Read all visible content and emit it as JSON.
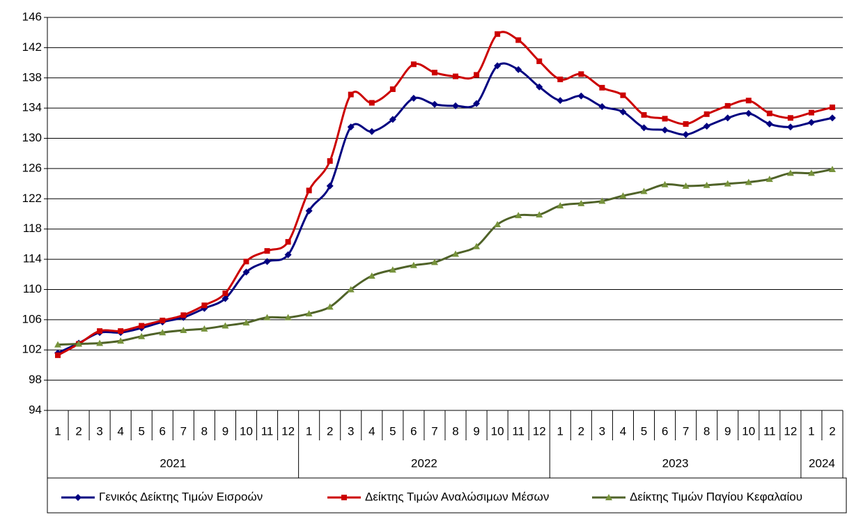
{
  "chart_data": {
    "type": "line",
    "categories": [
      "1",
      "2",
      "3",
      "4",
      "5",
      "6",
      "7",
      "8",
      "9",
      "10",
      "11",
      "12",
      "1",
      "2",
      "3",
      "4",
      "5",
      "6",
      "7",
      "8",
      "9",
      "10",
      "11",
      "12",
      "1",
      "2",
      "3",
      "4",
      "5",
      "6",
      "7",
      "8",
      "9",
      "10",
      "11",
      "12",
      "1",
      "2"
    ],
    "year_groups": [
      {
        "label": "2021",
        "span": 12
      },
      {
        "label": "2022",
        "span": 12
      },
      {
        "label": "2023",
        "span": 12
      },
      {
        "label": "2024",
        "span": 2
      }
    ],
    "series": [
      {
        "name": "Γενικός Δείκτης Τιμών Εισροών",
        "color": "#000080",
        "marker": "diamond",
        "values": [
          101.6,
          102.9,
          104.3,
          104.3,
          104.9,
          105.7,
          106.3,
          107.5,
          108.8,
          112.3,
          113.7,
          114.6,
          120.4,
          123.7,
          131.5,
          130.9,
          132.5,
          135.3,
          134.5,
          134.3,
          134.6,
          139.6,
          139.1,
          136.8,
          135.0,
          135.6,
          134.2,
          133.5,
          131.4,
          131.1,
          130.5,
          131.6,
          132.7,
          133.3,
          131.9,
          131.5,
          132.1,
          132.7
        ]
      },
      {
        "name": "Δείκτης Τιμών Αναλώσιμων Μέσων",
        "color": "#cc0000",
        "marker": "square",
        "values": [
          101.3,
          102.8,
          104.5,
          104.5,
          105.2,
          105.9,
          106.6,
          107.9,
          109.5,
          113.7,
          115.1,
          116.3,
          123.1,
          127.0,
          135.8,
          134.7,
          136.5,
          139.8,
          138.7,
          138.2,
          138.4,
          143.8,
          143.0,
          140.2,
          137.8,
          138.5,
          136.7,
          135.7,
          133.1,
          132.6,
          131.9,
          133.2,
          134.3,
          135.0,
          133.3,
          132.7,
          133.4,
          134.1
        ]
      },
      {
        "name": "Δείκτης Τιμών Παγίου Κεφαλαίου",
        "color": "#4f6228",
        "marker_color": "#77933c",
        "marker": "triangle",
        "values": [
          102.7,
          102.8,
          102.9,
          103.2,
          103.8,
          104.3,
          104.6,
          104.8,
          105.2,
          105.6,
          106.3,
          106.3,
          106.8,
          107.7,
          110.0,
          111.8,
          112.6,
          113.2,
          113.6,
          114.7,
          115.7,
          118.6,
          119.8,
          119.9,
          121.1,
          121.4,
          121.7,
          122.4,
          123.0,
          123.9,
          123.7,
          123.8,
          124.0,
          124.2,
          124.6,
          125.4,
          125.4,
          125.9
        ]
      }
    ],
    "ylim": [
      94,
      146
    ],
    "yticks": [
      94,
      98,
      102,
      106,
      110,
      114,
      118,
      122,
      126,
      130,
      134,
      138,
      142,
      146
    ],
    "grid": true,
    "legend": "bottom"
  }
}
